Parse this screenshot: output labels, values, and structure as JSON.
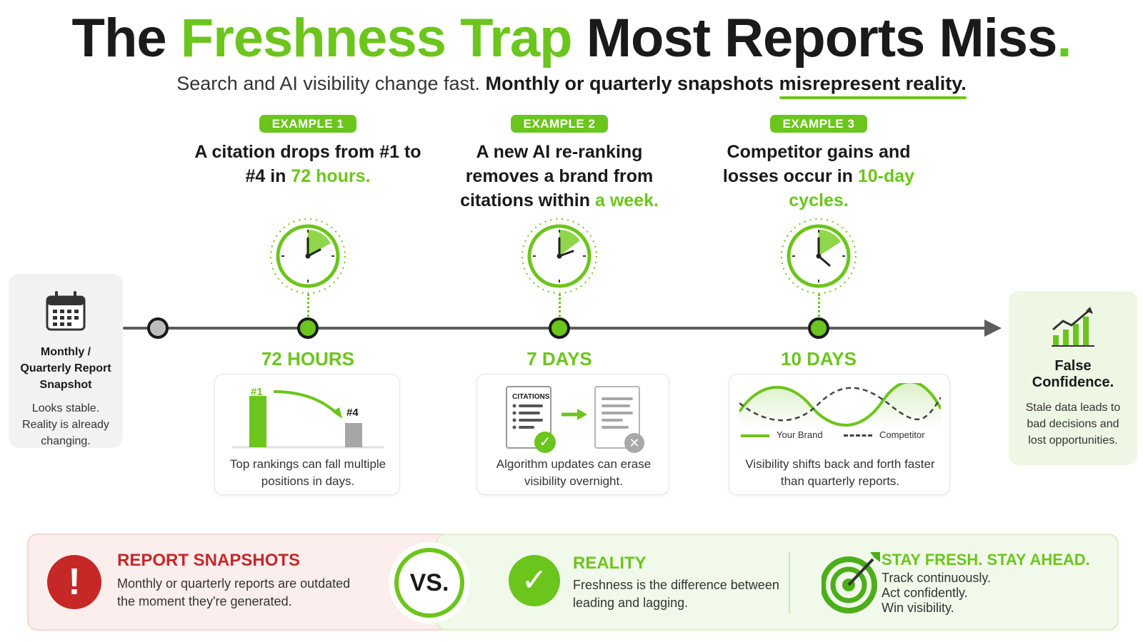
{
  "title": {
    "part1": "The ",
    "part2": "Freshness Trap",
    "part3": " Most Reports Miss",
    "dot": "."
  },
  "subtitle": {
    "part1": "Search and AI visibility change fast. ",
    "part2": "Monthly or quarterly snapshots ",
    "part3": "misrepresent reality."
  },
  "left_panel": {
    "icon": "calendar-icon",
    "title": "Monthly / Quarterly Report Snapshot",
    "text": "Looks stable. Reality is already changing."
  },
  "right_panel": {
    "icon": "bar-chart-trend-icon",
    "title": "False Confidence.",
    "text": "Stale data leads to bad decisions and lost opportunities."
  },
  "examples": [
    {
      "tag": "EXAMPLE 1",
      "head_a": "A citation drops from #1 to #4 in ",
      "head_b": "72 hours.",
      "days": "72 HOURS",
      "card_text": "Top rankings can fall multiple positions in days.",
      "label_from": "#1",
      "label_to": "#4"
    },
    {
      "tag": "EXAMPLE 2",
      "head_a": "A new AI re-ranking removes a brand from citations within ",
      "head_b": "a week.",
      "days": "7 DAYS",
      "card_text": "Algorithm updates can erase visibility overnight.",
      "doc_label": "CITATIONS"
    },
    {
      "tag": "EXAMPLE 3",
      "head_a": "Competitor gains and losses occur in ",
      "head_b": "10-day cycles.",
      "days": "10 DAYS",
      "card_text": "Visibility shifts back and forth faster than quarterly reports.",
      "legend_a": "Your Brand",
      "legend_b": "Competitor"
    }
  ],
  "bottom": {
    "left_title": "REPORT SNAPSHOTS",
    "left_text": "Monthly or quarterly reports are outdated the moment they're generated.",
    "vs": "VS.",
    "mid_title": "REALITY",
    "mid_text": "Freshness is the difference between leading and lagging.",
    "right_title": "STAY FRESH. STAY AHEAD.",
    "right_lines": [
      "Track continuously.",
      "Act confidently.",
      "Win visibility."
    ]
  },
  "colors": {
    "accent_green": "#6cc51c",
    "alert_red": "#c62828",
    "timeline_grey": "#5c5c5c"
  }
}
